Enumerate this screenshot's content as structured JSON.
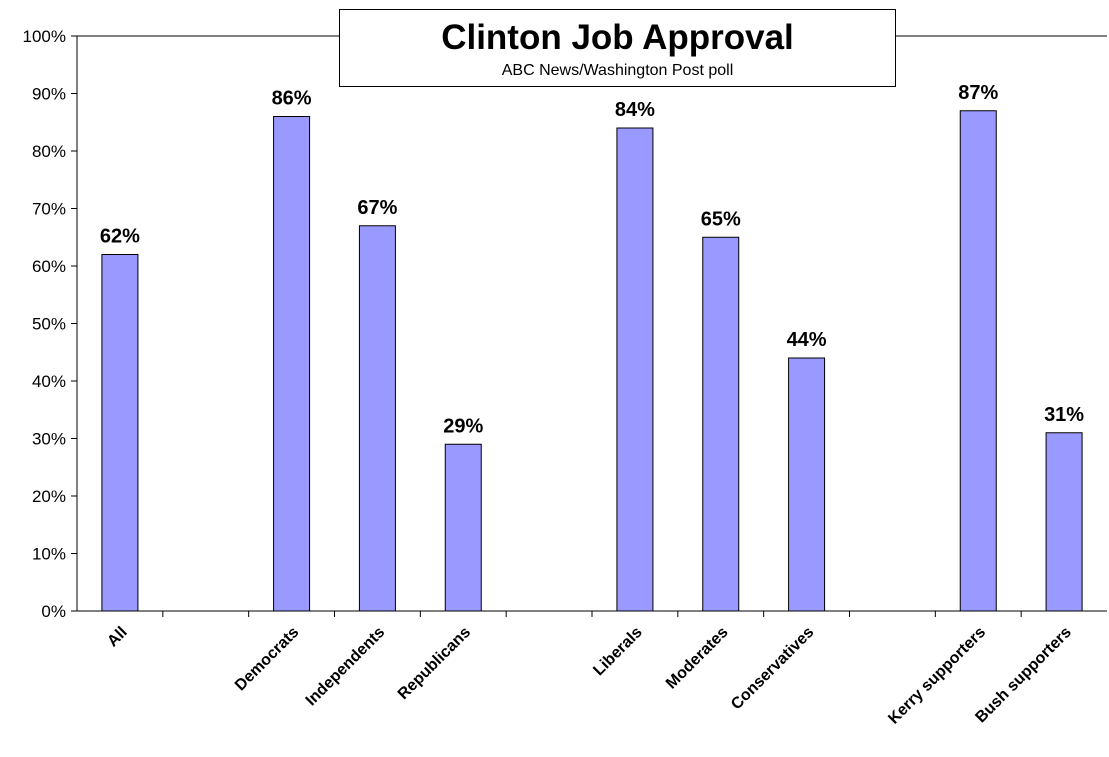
{
  "chart_data": {
    "type": "bar",
    "title": "Clinton Job Approval",
    "subtitle": "ABC News/Washington Post poll",
    "xlabel": "",
    "ylabel": "",
    "ylim": [
      0,
      100
    ],
    "y_tick_labels": [
      "0%",
      "10%",
      "20%",
      "30%",
      "40%",
      "50%",
      "60%",
      "70%",
      "80%",
      "90%",
      "100%"
    ],
    "categories": [
      "All",
      "",
      "Democrats",
      "Independents",
      "Republicans",
      "",
      "Liberals",
      "Moderates",
      "Conservatives",
      "",
      "Kerry supporters",
      "Bush supporters"
    ],
    "values": [
      62,
      null,
      86,
      67,
      29,
      null,
      84,
      65,
      44,
      null,
      87,
      31
    ],
    "data_labels": [
      "62%",
      "",
      "86%",
      "67%",
      "29%",
      "",
      "84%",
      "65%",
      "44%",
      "",
      "87%",
      "31%"
    ],
    "bar_color": "#9999ff",
    "grid": false,
    "legend": "none"
  }
}
